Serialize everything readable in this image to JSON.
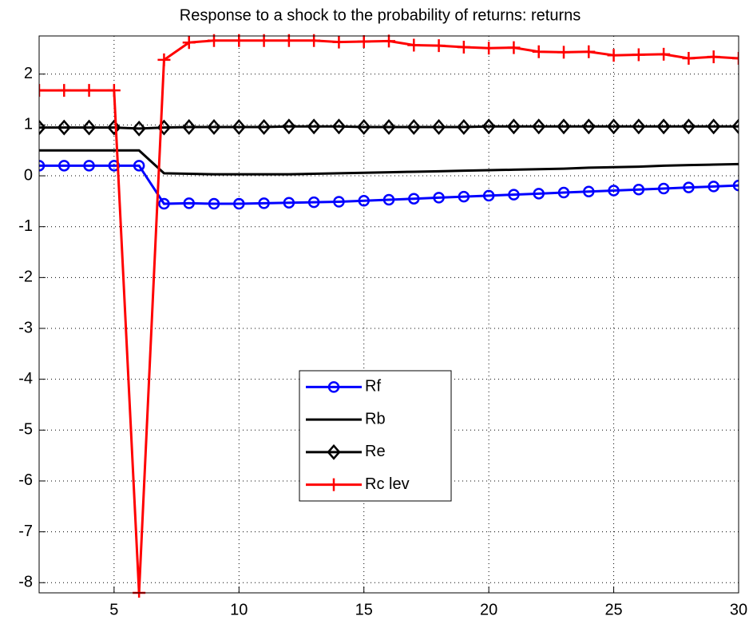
{
  "chart_data": {
    "type": "line",
    "title": "Response to a shock to the probability of returns: returns",
    "x": [
      2,
      3,
      4,
      5,
      6,
      7,
      8,
      9,
      10,
      11,
      12,
      13,
      14,
      15,
      16,
      17,
      18,
      19,
      20,
      21,
      22,
      23,
      24,
      25,
      26,
      27,
      28,
      29,
      30
    ],
    "series": [
      {
        "name": "Rf",
        "color": "#0000ff",
        "marker": "circle",
        "values": [
          0.2,
          0.2,
          0.2,
          0.2,
          0.2,
          -0.55,
          -0.54,
          -0.55,
          -0.55,
          -0.54,
          -0.53,
          -0.52,
          -0.51,
          -0.49,
          -0.47,
          -0.45,
          -0.43,
          -0.41,
          -0.39,
          -0.37,
          -0.35,
          -0.33,
          -0.31,
          -0.29,
          -0.27,
          -0.25,
          -0.23,
          -0.21,
          -0.19
        ]
      },
      {
        "name": "Rb",
        "color": "#000000",
        "marker": "none",
        "values": [
          0.5,
          0.5,
          0.5,
          0.5,
          0.5,
          0.05,
          0.04,
          0.03,
          0.03,
          0.03,
          0.03,
          0.04,
          0.05,
          0.06,
          0.07,
          0.08,
          0.09,
          0.1,
          0.11,
          0.12,
          0.13,
          0.14,
          0.16,
          0.17,
          0.18,
          0.2,
          0.21,
          0.22,
          0.23
        ]
      },
      {
        "name": "Re",
        "color": "#000000",
        "marker": "diamond",
        "values": [
          0.95,
          0.95,
          0.95,
          0.95,
          0.93,
          0.95,
          0.96,
          0.96,
          0.96,
          0.96,
          0.97,
          0.97,
          0.97,
          0.96,
          0.96,
          0.96,
          0.96,
          0.96,
          0.97,
          0.97,
          0.97,
          0.97,
          0.97,
          0.97,
          0.97,
          0.97,
          0.97,
          0.97,
          0.97
        ]
      },
      {
        "name": "Rc lev",
        "color": "#ff0000",
        "marker": "plus",
        "values": [
          1.68,
          1.68,
          1.68,
          1.68,
          -8.2,
          2.28,
          2.62,
          2.66,
          2.66,
          2.66,
          2.66,
          2.66,
          2.63,
          2.64,
          2.65,
          2.57,
          2.56,
          2.53,
          2.51,
          2.52,
          2.44,
          2.43,
          2.44,
          2.37,
          2.38,
          2.39,
          2.31,
          2.34,
          2.31
        ]
      }
    ],
    "xlim": [
      2,
      30
    ],
    "xticks": [
      5,
      10,
      15,
      20,
      25,
      30
    ],
    "ylim": [
      -8.2,
      2.75
    ],
    "yticks": [
      -8,
      -7,
      -6,
      -5,
      -4,
      -3,
      -2,
      -1,
      0,
      1,
      2
    ],
    "grid": true
  }
}
